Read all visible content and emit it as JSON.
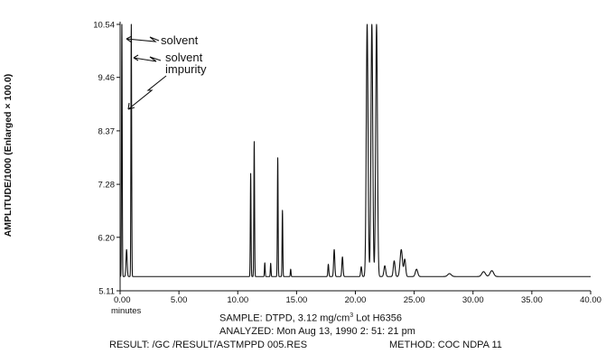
{
  "chart_data": {
    "type": "line",
    "ylabel": "AMPLITUDE/1000 (Enlarged × 100.0)",
    "xlabel": "minutes",
    "xlim": [
      0,
      40
    ],
    "ylim": [
      5.11,
      10.54
    ],
    "x_ticks": [
      "0.00",
      "5.00",
      "10.00",
      "15.00",
      "20.00",
      "25.00",
      "30.00",
      "35.00",
      "40.00"
    ],
    "y_ticks": [
      "5.11",
      "6.20",
      "7.28",
      "8.37",
      "9.46",
      "10.54"
    ],
    "grid": false,
    "baseline": 5.4,
    "series": [
      {
        "peaks": [
          {
            "rt": 0.15,
            "height": 10.54,
            "width": 0.06
          },
          {
            "rt": 0.55,
            "height": 5.95,
            "width": 0.1
          },
          {
            "rt": 0.95,
            "height": 10.54,
            "width": 0.06
          },
          {
            "rt": 11.1,
            "height": 7.5,
            "width": 0.06
          },
          {
            "rt": 11.4,
            "height": 8.15,
            "width": 0.06
          },
          {
            "rt": 12.3,
            "height": 5.68,
            "width": 0.06
          },
          {
            "rt": 12.8,
            "height": 5.67,
            "width": 0.06
          },
          {
            "rt": 13.4,
            "height": 7.82,
            "width": 0.06
          },
          {
            "rt": 13.8,
            "height": 6.75,
            "width": 0.06
          },
          {
            "rt": 14.5,
            "height": 5.55,
            "width": 0.06
          },
          {
            "rt": 17.7,
            "height": 5.65,
            "width": 0.08
          },
          {
            "rt": 18.2,
            "height": 5.95,
            "width": 0.1
          },
          {
            "rt": 18.9,
            "height": 5.8,
            "width": 0.1
          },
          {
            "rt": 20.5,
            "height": 5.6,
            "width": 0.1
          },
          {
            "rt": 21.0,
            "height": 10.54,
            "width": 0.15
          },
          {
            "rt": 21.4,
            "height": 10.54,
            "width": 0.15
          },
          {
            "rt": 21.8,
            "height": 10.54,
            "width": 0.15
          },
          {
            "rt": 22.5,
            "height": 5.62,
            "width": 0.15
          },
          {
            "rt": 23.3,
            "height": 5.72,
            "width": 0.15
          },
          {
            "rt": 23.9,
            "height": 5.95,
            "width": 0.2
          },
          {
            "rt": 24.2,
            "height": 5.75,
            "width": 0.15
          },
          {
            "rt": 25.2,
            "height": 5.55,
            "width": 0.2
          },
          {
            "rt": 28.0,
            "height": 5.46,
            "width": 0.3
          },
          {
            "rt": 30.9,
            "height": 5.5,
            "width": 0.3
          },
          {
            "rt": 31.6,
            "height": 5.52,
            "width": 0.3
          }
        ]
      }
    ],
    "annotations": [
      {
        "text": "solvent",
        "x": 0.15,
        "y": 10.4
      },
      {
        "text": "solvent",
        "x": 0.95,
        "y": 10.1
      },
      {
        "text": "impurity",
        "x": 0.6,
        "y": 9.6
      }
    ]
  },
  "captions": {
    "sample": "SAMPLE: DTPD,  3.12 mg/cm",
    "sample_sup": "3",
    "sample_lot": " Lot H6356",
    "analyzed": "ANALYZED: Mon Aug 13, 1990  2: 51: 21 pm",
    "result": "RESULT:  /GC /RESULT/ASTMPPD 005.RES",
    "method": "METHOD:  COC NDPA 11"
  }
}
